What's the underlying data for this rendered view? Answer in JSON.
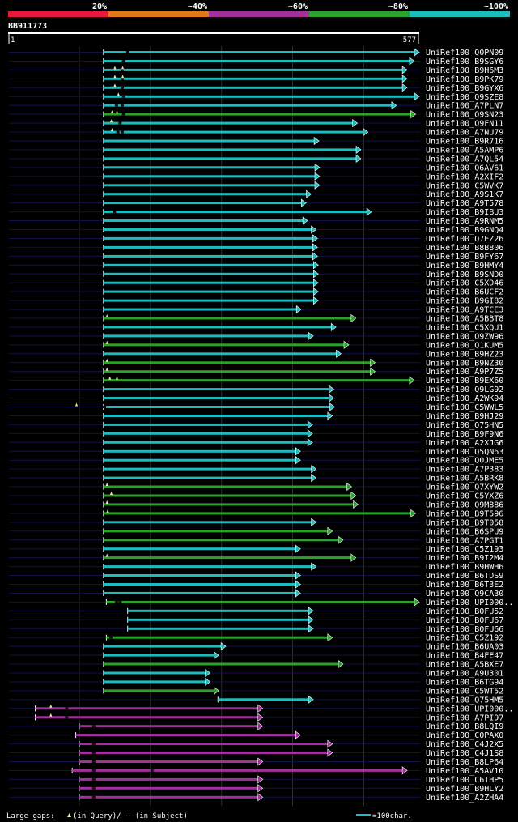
{
  "query_id": "BB911773",
  "query_length": 577,
  "axis_start": "1",
  "axis_end": "577",
  "identity_legend": [
    {
      "label": "20%",
      "color": "#e8173c"
    },
    {
      "label": "~40%",
      "color": "#e07a1a"
    },
    {
      "label": "~60%",
      "color": "#a0309a"
    },
    {
      "label": "~80%",
      "color": "#2aa22a"
    },
    {
      "label": "~100%",
      "color": "#1bbcc0"
    }
  ],
  "footer": {
    "gaps_prefix": "Large gaps: ",
    "gaps_query": "(in Query)/",
    "gaps_subject": "– (in Subject)",
    "scale_label": "=100char."
  },
  "colors": {
    "cyan": "#1bbcc0",
    "green": "#2aa22a",
    "purple": "#a0309a",
    "navy": "#10104a"
  },
  "hits": [
    {
      "name": "UniRef100_Q0PN09",
      "start": 134,
      "end": 577,
      "color": "cyan",
      "q": [],
      "s": [
        166
      ]
    },
    {
      "name": "UniRef100_B9SGY6",
      "start": 134,
      "end": 570,
      "color": "cyan",
      "q": [],
      "s": [
        160
      ]
    },
    {
      "name": "UniRef100_B9H6M3",
      "start": 134,
      "end": 560,
      "color": "cyan",
      "q": [
        150,
        161
      ],
      "s": [
        158
      ]
    },
    {
      "name": "UniRef100_B9PK79",
      "start": 134,
      "end": 560,
      "color": "cyan",
      "q": [
        150,
        161
      ],
      "s": [
        158
      ]
    },
    {
      "name": "UniRef100_B9GYX6",
      "start": 134,
      "end": 560,
      "color": "cyan",
      "q": [
        150
      ],
      "s": [
        158
      ]
    },
    {
      "name": "UniRef100_Q9SZE8",
      "start": 134,
      "end": 577,
      "color": "cyan",
      "q": [
        155
      ],
      "s": [
        160
      ]
    },
    {
      "name": "UniRef100_A7PLN7",
      "start": 134,
      "end": 545,
      "color": "cyan",
      "q": [],
      "s": [
        150,
        158
      ]
    },
    {
      "name": "UniRef100_Q9SN23",
      "start": 134,
      "end": 572,
      "color": "green",
      "q": [
        146,
        153
      ],
      "s": [
        160
      ]
    },
    {
      "name": "UniRef100_Q9FN11",
      "start": 134,
      "end": 490,
      "color": "cyan",
      "q": [
        145
      ],
      "s": [
        155
      ]
    },
    {
      "name": "UniRef100_A7NU79",
      "start": 134,
      "end": 505,
      "color": "cyan",
      "q": [
        146
      ],
      "s": [
        152,
        158
      ]
    },
    {
      "name": "UniRef100_B9R716",
      "start": 134,
      "end": 436,
      "color": "cyan",
      "q": [],
      "s": []
    },
    {
      "name": "UniRef100_A5AMP6",
      "start": 134,
      "end": 495,
      "color": "cyan",
      "q": [],
      "s": []
    },
    {
      "name": "UniRef100_A7QL54",
      "start": 134,
      "end": 495,
      "color": "cyan",
      "q": [],
      "s": []
    },
    {
      "name": "UniRef100_Q6AV61",
      "start": 134,
      "end": 437,
      "color": "cyan",
      "q": [],
      "s": []
    },
    {
      "name": "UniRef100_A2XIF2",
      "start": 134,
      "end": 437,
      "color": "cyan",
      "q": [],
      "s": []
    },
    {
      "name": "UniRef100_C5WVK7",
      "start": 134,
      "end": 437,
      "color": "cyan",
      "q": [],
      "s": []
    },
    {
      "name": "UniRef100_A9S1K7",
      "start": 134,
      "end": 425,
      "color": "cyan",
      "q": [],
      "s": []
    },
    {
      "name": "UniRef100_A9T578",
      "start": 134,
      "end": 418,
      "color": "cyan",
      "q": [],
      "s": []
    },
    {
      "name": "UniRef100_B9IBU3",
      "start": 134,
      "end": 510,
      "color": "cyan",
      "q": [],
      "s": [
        147
      ]
    },
    {
      "name": "UniRef100_A9RNM5",
      "start": 134,
      "end": 420,
      "color": "cyan",
      "q": [],
      "s": []
    },
    {
      "name": "UniRef100_B9GNQ4",
      "start": 134,
      "end": 432,
      "color": "cyan",
      "q": [],
      "s": []
    },
    {
      "name": "UniRef100_Q7EZ26",
      "start": 134,
      "end": 434,
      "color": "cyan",
      "q": [],
      "s": []
    },
    {
      "name": "UniRef100_B8B806",
      "start": 134,
      "end": 434,
      "color": "cyan",
      "q": [],
      "s": []
    },
    {
      "name": "UniRef100_B9FY67",
      "start": 134,
      "end": 434,
      "color": "cyan",
      "q": [],
      "s": []
    },
    {
      "name": "UniRef100_B9HMY4",
      "start": 134,
      "end": 435,
      "color": "cyan",
      "q": [],
      "s": []
    },
    {
      "name": "UniRef100_B9SND0",
      "start": 134,
      "end": 435,
      "color": "cyan",
      "q": [],
      "s": []
    },
    {
      "name": "UniRef100_C5XD46",
      "start": 134,
      "end": 435,
      "color": "cyan",
      "q": [],
      "s": []
    },
    {
      "name": "UniRef100_B6UCF2",
      "start": 134,
      "end": 435,
      "color": "cyan",
      "q": [],
      "s": []
    },
    {
      "name": "UniRef100_B9GI82",
      "start": 134,
      "end": 435,
      "color": "cyan",
      "q": [],
      "s": []
    },
    {
      "name": "UniRef100_A9TCE3",
      "start": 134,
      "end": 411,
      "color": "cyan",
      "q": [],
      "s": []
    },
    {
      "name": "UniRef100_A5BBT8",
      "start": 134,
      "end": 488,
      "color": "green",
      "q": [
        139
      ],
      "s": []
    },
    {
      "name": "UniRef100_C5XQU1",
      "start": 134,
      "end": 460,
      "color": "cyan",
      "q": [],
      "s": []
    },
    {
      "name": "UniRef100_Q9ZW96",
      "start": 134,
      "end": 428,
      "color": "cyan",
      "q": [],
      "s": []
    },
    {
      "name": "UniRef100_Q1KUM5",
      "start": 134,
      "end": 478,
      "color": "green",
      "q": [
        139
      ],
      "s": []
    },
    {
      "name": "UniRef100_B9HZ23",
      "start": 134,
      "end": 467,
      "color": "cyan",
      "q": [],
      "s": []
    },
    {
      "name": "UniRef100_B9NZ30",
      "start": 134,
      "end": 515,
      "color": "green",
      "q": [
        139
      ],
      "s": []
    },
    {
      "name": "UniRef100_A9P7Z5",
      "start": 134,
      "end": 515,
      "color": "green",
      "q": [
        139
      ],
      "s": []
    },
    {
      "name": "UniRef100_B9EX60",
      "start": 134,
      "end": 570,
      "color": "green",
      "q": [
        143,
        153
      ],
      "s": []
    },
    {
      "name": "UniRef100_Q9LG92",
      "start": 134,
      "end": 457,
      "color": "cyan",
      "q": [],
      "s": []
    },
    {
      "name": "UniRef100_A2WK94",
      "start": 134,
      "end": 457,
      "color": "cyan",
      "q": [],
      "s": []
    },
    {
      "name": "UniRef100_C5WWL5",
      "start": 134,
      "end": 458,
      "color": "cyan",
      "q": [
        96
      ],
      "s": [
        133
      ]
    },
    {
      "name": "UniRef100_B9HJ29",
      "start": 134,
      "end": 455,
      "color": "cyan",
      "q": [],
      "s": []
    },
    {
      "name": "UniRef100_Q75HN5",
      "start": 134,
      "end": 427,
      "color": "cyan",
      "q": [],
      "s": []
    },
    {
      "name": "UniRef100_B9F9N6",
      "start": 134,
      "end": 427,
      "color": "cyan",
      "q": [],
      "s": []
    },
    {
      "name": "UniRef100_A2XJG6",
      "start": 134,
      "end": 427,
      "color": "cyan",
      "q": [],
      "s": []
    },
    {
      "name": "UniRef100_Q5QN63",
      "start": 134,
      "end": 410,
      "color": "cyan",
      "q": [],
      "s": []
    },
    {
      "name": "UniRef100_Q0JME5",
      "start": 134,
      "end": 410,
      "color": "cyan",
      "q": [],
      "s": []
    },
    {
      "name": "UniRef100_A7P383",
      "start": 134,
      "end": 432,
      "color": "cyan",
      "q": [],
      "s": []
    },
    {
      "name": "UniRef100_A5BRK8",
      "start": 134,
      "end": 432,
      "color": "cyan",
      "q": [],
      "s": []
    },
    {
      "name": "UniRef100_Q7XYW2",
      "start": 134,
      "end": 482,
      "color": "green",
      "q": [
        139
      ],
      "s": []
    },
    {
      "name": "UniRef100_C5YXZ6",
      "start": 134,
      "end": 488,
      "color": "green",
      "q": [
        145
      ],
      "s": []
    },
    {
      "name": "UniRef100_Q9M886",
      "start": 134,
      "end": 491,
      "color": "green",
      "q": [
        139
      ],
      "s": []
    },
    {
      "name": "UniRef100_B9T596",
      "start": 134,
      "end": 572,
      "color": "green",
      "q": [
        140
      ],
      "s": []
    },
    {
      "name": "UniRef100_B9T058",
      "start": 134,
      "end": 432,
      "color": "cyan",
      "q": [],
      "s": []
    },
    {
      "name": "UniRef100_B6SPU9",
      "start": 134,
      "end": 455,
      "color": "green",
      "q": [],
      "s": []
    },
    {
      "name": "UniRef100_A7PGT1",
      "start": 134,
      "end": 470,
      "color": "green",
      "q": [],
      "s": []
    },
    {
      "name": "UniRef100_C5Z193",
      "start": 134,
      "end": 410,
      "color": "cyan",
      "q": [],
      "s": []
    },
    {
      "name": "UniRef100_B9I2M4",
      "start": 134,
      "end": 488,
      "color": "green",
      "q": [
        139
      ],
      "s": []
    },
    {
      "name": "UniRef100_B9HWH6",
      "start": 134,
      "end": 432,
      "color": "cyan",
      "q": [],
      "s": []
    },
    {
      "name": "UniRef100_B6TDS9",
      "start": 134,
      "end": 410,
      "color": "cyan",
      "q": [],
      "s": []
    },
    {
      "name": "UniRef100_B6T3E2",
      "start": 134,
      "end": 410,
      "color": "cyan",
      "q": [],
      "s": []
    },
    {
      "name": "UniRef100_Q9CA30",
      "start": 134,
      "end": 410,
      "color": "cyan",
      "q": [],
      "s": []
    },
    {
      "name": "UniRef100_UPI000..",
      "start": 138,
      "end": 577,
      "color": "green",
      "q": [],
      "s": [
        150,
        155
      ]
    },
    {
      "name": "UniRef100_B0FU52",
      "start": 168,
      "end": 428,
      "color": "cyan",
      "q": [],
      "s": []
    },
    {
      "name": "UniRef100_B0FU67",
      "start": 168,
      "end": 428,
      "color": "cyan",
      "q": [],
      "s": []
    },
    {
      "name": "UniRef100_B0FU66",
      "start": 168,
      "end": 428,
      "color": "cyan",
      "q": [],
      "s": []
    },
    {
      "name": "UniRef100_C5Z192",
      "start": 138,
      "end": 455,
      "color": "green",
      "q": [],
      "s": [
        142
      ]
    },
    {
      "name": "UniRef100_B6UA03",
      "start": 134,
      "end": 305,
      "color": "cyan",
      "q": [],
      "s": []
    },
    {
      "name": "UniRef100_B4FE47",
      "start": 134,
      "end": 295,
      "color": "cyan",
      "q": [],
      "s": []
    },
    {
      "name": "UniRef100_A5BXE7",
      "start": 134,
      "end": 470,
      "color": "green",
      "q": [],
      "s": []
    },
    {
      "name": "UniRef100_A9U301",
      "start": 134,
      "end": 283,
      "color": "cyan",
      "q": [],
      "s": []
    },
    {
      "name": "UniRef100_B6TG94",
      "start": 134,
      "end": 283,
      "color": "cyan",
      "q": [],
      "s": []
    },
    {
      "name": "UniRef100_C5WT52",
      "start": 134,
      "end": 295,
      "color": "green",
      "q": [],
      "s": []
    },
    {
      "name": "UniRef100_Q75HM5",
      "start": 295,
      "end": 428,
      "color": "cyan",
      "q": [],
      "s": []
    },
    {
      "name": "UniRef100_UPI000..",
      "start": 38,
      "end": 357,
      "color": "purple",
      "q": [
        60
      ],
      "s": [
        80
      ]
    },
    {
      "name": "UniRef100_A7PI97",
      "start": 38,
      "end": 357,
      "color": "purple",
      "q": [
        60
      ],
      "s": [
        80
      ]
    },
    {
      "name": "UniRef100_B8LQI9",
      "start": 100,
      "end": 357,
      "color": "purple",
      "q": [],
      "s": [
        118
      ]
    },
    {
      "name": "UniRef100_C0PAX0",
      "start": 95,
      "end": 410,
      "color": "purple",
      "q": [],
      "s": []
    },
    {
      "name": "UniRef100_C4J2X5",
      "start": 100,
      "end": 455,
      "color": "purple",
      "q": [],
      "s": [
        118
      ]
    },
    {
      "name": "UniRef100_C4J1S8",
      "start": 100,
      "end": 455,
      "color": "purple",
      "q": [],
      "s": [
        118
      ]
    },
    {
      "name": "UniRef100_B8LP64",
      "start": 100,
      "end": 357,
      "color": "purple",
      "q": [],
      "s": [
        118
      ]
    },
    {
      "name": "UniRef100_A5AV10",
      "start": 90,
      "end": 560,
      "color": "purple",
      "q": [],
      "s": [
        118,
        200
      ]
    },
    {
      "name": "UniRef100_C6THP5",
      "start": 100,
      "end": 357,
      "color": "purple",
      "q": [],
      "s": [
        118
      ]
    },
    {
      "name": "UniRef100_B9HLY2",
      "start": 100,
      "end": 357,
      "color": "purple",
      "q": [],
      "s": [
        118
      ]
    },
    {
      "name": "UniRef100_A2ZHA4",
      "start": 100,
      "end": 357,
      "color": "purple",
      "q": [],
      "s": [
        118
      ]
    }
  ]
}
